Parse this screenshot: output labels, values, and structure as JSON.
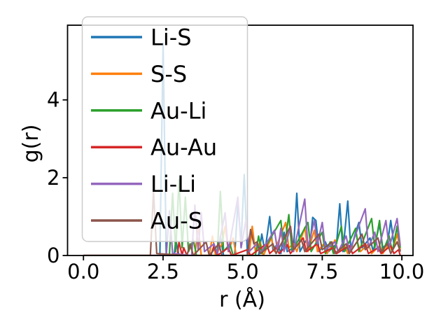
{
  "figure": {
    "background": "#ffffff",
    "spine_color": "#000000",
    "legend_face_color": "#ffffff",
    "legend_edge_color": "#cccccc"
  },
  "chart_data": {
    "type": "line",
    "title": "",
    "xlabel": "r (Å)",
    "ylabel": "g(r)",
    "xlim": [
      -0.5,
      10.35
    ],
    "ylim": [
      0,
      5.92
    ],
    "xticks": [
      0.0,
      2.5,
      5.0,
      7.5,
      10.0
    ],
    "xtick_labels": [
      "0.0",
      "2.5",
      "5.0",
      "7.5",
      "10.0"
    ],
    "yticks": [
      0,
      2,
      4
    ],
    "ytick_labels": [
      "0",
      "2",
      "4"
    ],
    "grid": false,
    "legend_position": "upper left",
    "series": [
      {
        "name": "Li-S",
        "color": "#1f77b4",
        "points": [
          [
            0.0,
            0
          ],
          [
            2.4,
            0
          ],
          [
            2.5,
            5.45
          ],
          [
            2.6,
            0
          ],
          [
            2.85,
            0
          ],
          [
            2.9,
            0.4
          ],
          [
            3.0,
            0
          ],
          [
            4.2,
            0
          ],
          [
            4.3,
            0.5
          ],
          [
            4.4,
            0
          ],
          [
            4.75,
            0
          ],
          [
            4.85,
            1.35
          ],
          [
            4.95,
            0.3
          ],
          [
            5.05,
            2.08
          ],
          [
            5.15,
            0
          ],
          [
            5.5,
            0
          ],
          [
            5.6,
            0.55
          ],
          [
            5.7,
            0.1
          ],
          [
            5.85,
            1.0
          ],
          [
            5.95,
            0.15
          ],
          [
            6.1,
            0.3
          ],
          [
            6.2,
            0.05
          ],
          [
            6.3,
            0.6
          ],
          [
            6.4,
            0.1
          ],
          [
            6.6,
            0.2
          ],
          [
            6.7,
            1.6
          ],
          [
            6.8,
            0.1
          ],
          [
            7.0,
            0.4
          ],
          [
            7.1,
            0.15
          ],
          [
            7.2,
            0.98
          ],
          [
            7.3,
            0.9
          ],
          [
            7.4,
            0.1
          ],
          [
            7.6,
            0.35
          ],
          [
            7.7,
            0.1
          ],
          [
            7.95,
            0.3
          ],
          [
            8.05,
            1.33
          ],
          [
            8.15,
            0.1
          ],
          [
            8.3,
            1.4
          ],
          [
            8.4,
            0.15
          ],
          [
            8.55,
            0.6
          ],
          [
            8.65,
            0.85
          ],
          [
            8.75,
            0.2
          ],
          [
            9.0,
            0.45
          ],
          [
            9.1,
            0.1
          ],
          [
            9.3,
            0.8
          ],
          [
            9.4,
            0.2
          ],
          [
            9.55,
            0.3
          ],
          [
            9.65,
            0.9
          ],
          [
            9.75,
            0.3
          ],
          [
            9.85,
            0.75
          ],
          [
            9.95,
            0.1
          ]
        ]
      },
      {
        "name": "S-S",
        "color": "#ff7f0e",
        "points": [
          [
            0.0,
            0
          ],
          [
            3.5,
            0
          ],
          [
            3.6,
            0.75
          ],
          [
            3.7,
            0
          ],
          [
            3.95,
            0
          ],
          [
            4.05,
            0.5
          ],
          [
            4.15,
            0
          ],
          [
            4.35,
            0.3
          ],
          [
            4.45,
            0.75
          ],
          [
            4.55,
            0.1
          ],
          [
            4.7,
            0.45
          ],
          [
            4.8,
            0
          ],
          [
            5.2,
            0
          ],
          [
            5.3,
            0.75
          ],
          [
            5.4,
            0.1
          ],
          [
            5.55,
            0.35
          ],
          [
            5.65,
            0
          ],
          [
            5.9,
            0.45
          ],
          [
            6.0,
            0.1
          ],
          [
            6.35,
            0.85
          ],
          [
            6.45,
            0.2
          ],
          [
            6.6,
            0.3
          ],
          [
            6.7,
            0.1
          ],
          [
            6.95,
            0.72
          ],
          [
            7.05,
            0.1
          ],
          [
            7.25,
            0.65
          ],
          [
            7.35,
            0.1
          ],
          [
            7.55,
            0.3
          ],
          [
            7.65,
            0.05
          ],
          [
            7.9,
            0.4
          ],
          [
            8.0,
            0.1
          ],
          [
            8.2,
            0.25
          ],
          [
            8.3,
            0.05
          ],
          [
            8.6,
            0.35
          ],
          [
            8.7,
            0.1
          ],
          [
            8.95,
            0.3
          ],
          [
            9.05,
            0.05
          ],
          [
            9.3,
            0.25
          ],
          [
            9.4,
            0.05
          ],
          [
            9.6,
            0.3
          ],
          [
            9.7,
            0.1
          ],
          [
            9.85,
            0.55
          ],
          [
            9.95,
            0.15
          ]
        ]
      },
      {
        "name": "Au-Li",
        "color": "#2ca02c",
        "points": [
          [
            0.0,
            0
          ],
          [
            2.7,
            0
          ],
          [
            2.8,
            1.6
          ],
          [
            2.9,
            0.1
          ],
          [
            3.0,
            1.95
          ],
          [
            3.1,
            0.2
          ],
          [
            3.2,
            1.5
          ],
          [
            3.3,
            0.1
          ],
          [
            3.45,
            0.4
          ],
          [
            3.55,
            0
          ],
          [
            4.2,
            0
          ],
          [
            4.3,
            1.65
          ],
          [
            4.4,
            0.1
          ],
          [
            4.6,
            0.3
          ],
          [
            4.7,
            0
          ],
          [
            5.4,
            0
          ],
          [
            5.5,
            0.5
          ],
          [
            5.6,
            0.05
          ],
          [
            6.2,
            0.9
          ],
          [
            6.3,
            0.15
          ],
          [
            6.45,
            1.05
          ],
          [
            6.55,
            0.1
          ],
          [
            7.05,
            0.85
          ],
          [
            7.15,
            0.1
          ],
          [
            7.5,
            0.6
          ],
          [
            7.6,
            0.05
          ],
          [
            7.75,
            0.35
          ],
          [
            7.85,
            0.05
          ],
          [
            8.1,
            0.75
          ],
          [
            8.2,
            0.1
          ],
          [
            8.55,
            0.7
          ],
          [
            8.65,
            0.1
          ],
          [
            9.05,
            0.95
          ],
          [
            9.15,
            0.2
          ],
          [
            9.3,
            0.9
          ],
          [
            9.4,
            0.1
          ],
          [
            9.6,
            0.5
          ],
          [
            9.7,
            0.1
          ],
          [
            9.85,
            0.75
          ],
          [
            9.95,
            0.2
          ]
        ]
      },
      {
        "name": "Au-Au",
        "color": "#d62728",
        "points": [
          [
            0.0,
            0
          ],
          [
            2.95,
            0
          ],
          [
            3.0,
            0.35
          ],
          [
            3.1,
            0
          ],
          [
            3.15,
            0.2
          ],
          [
            3.25,
            0
          ],
          [
            4.0,
            0
          ],
          [
            4.1,
            0.25
          ],
          [
            4.2,
            0
          ],
          [
            4.55,
            0.2
          ],
          [
            4.65,
            0
          ],
          [
            5.15,
            0.15
          ],
          [
            5.25,
            0
          ],
          [
            5.75,
            0.3
          ],
          [
            5.85,
            0.05
          ],
          [
            6.05,
            0.2
          ],
          [
            6.15,
            0.05
          ],
          [
            6.4,
            0.28
          ],
          [
            6.5,
            0.05
          ],
          [
            6.9,
            0.45
          ],
          [
            7.0,
            0.1
          ],
          [
            7.35,
            0.3
          ],
          [
            7.45,
            0.05
          ],
          [
            7.85,
            0.2
          ],
          [
            7.95,
            0.05
          ],
          [
            8.35,
            0.25
          ],
          [
            8.45,
            0.05
          ],
          [
            8.85,
            0.3
          ],
          [
            8.95,
            0.05
          ],
          [
            9.25,
            0.2
          ],
          [
            9.35,
            0.05
          ],
          [
            9.65,
            0.25
          ],
          [
            9.75,
            0.05
          ],
          [
            9.9,
            0.15
          ],
          [
            9.95,
            0
          ]
        ]
      },
      {
        "name": "Li-Li",
        "color": "#9467bd",
        "points": [
          [
            0.0,
            0
          ],
          [
            2.6,
            0
          ],
          [
            2.7,
            1.15
          ],
          [
            2.8,
            0.05
          ],
          [
            3.4,
            0
          ],
          [
            3.5,
            1.3
          ],
          [
            3.6,
            0.15
          ],
          [
            3.7,
            1.1
          ],
          [
            3.8,
            0.1
          ],
          [
            4.1,
            0.3
          ],
          [
            4.2,
            0.05
          ],
          [
            4.45,
            1.1
          ],
          [
            4.55,
            0.1
          ],
          [
            4.85,
            1.5
          ],
          [
            4.95,
            0.2
          ],
          [
            5.1,
            0.9
          ],
          [
            5.2,
            0.1
          ],
          [
            5.45,
            0.3
          ],
          [
            5.55,
            0.05
          ],
          [
            6.0,
            0.65
          ],
          [
            6.1,
            0.1
          ],
          [
            6.2,
            0.7
          ],
          [
            6.3,
            0.1
          ],
          [
            6.5,
            0.75
          ],
          [
            6.6,
            0.1
          ],
          [
            6.95,
            1.45
          ],
          [
            7.05,
            0.2
          ],
          [
            7.25,
            0.9
          ],
          [
            7.35,
            0.3
          ],
          [
            7.5,
            0.85
          ],
          [
            7.6,
            0.15
          ],
          [
            7.9,
            0.35
          ],
          [
            8.0,
            0.1
          ],
          [
            8.25,
            0.5
          ],
          [
            8.35,
            0.1
          ],
          [
            8.85,
            1.2
          ],
          [
            8.95,
            0.2
          ],
          [
            9.15,
            0.6
          ],
          [
            9.25,
            0.1
          ],
          [
            9.5,
            0.9
          ],
          [
            9.6,
            0.2
          ],
          [
            9.85,
            0.95
          ],
          [
            9.95,
            0.25
          ]
        ]
      },
      {
        "name": "Au-S",
        "color": "#8c564b",
        "points": [
          [
            0.0,
            0
          ],
          [
            2.1,
            0
          ],
          [
            2.2,
            1.65
          ],
          [
            2.3,
            0.05
          ],
          [
            3.25,
            0
          ],
          [
            3.35,
            0.3
          ],
          [
            3.45,
            0
          ],
          [
            3.85,
            0.35
          ],
          [
            3.95,
            0
          ],
          [
            4.25,
            0.3
          ],
          [
            4.35,
            0
          ],
          [
            5.15,
            0
          ],
          [
            5.25,
            0.67
          ],
          [
            5.35,
            0.3
          ],
          [
            5.45,
            0.35
          ],
          [
            5.55,
            0.05
          ],
          [
            5.95,
            0.3
          ],
          [
            6.05,
            0.05
          ],
          [
            6.5,
            0.75
          ],
          [
            6.6,
            0.15
          ],
          [
            6.85,
            0.4
          ],
          [
            6.95,
            0.1
          ],
          [
            7.4,
            0.55
          ],
          [
            7.5,
            0.15
          ],
          [
            7.8,
            0.35
          ],
          [
            7.9,
            0.05
          ],
          [
            8.25,
            0.3
          ],
          [
            8.35,
            0.05
          ],
          [
            8.75,
            0.55
          ],
          [
            8.85,
            0.15
          ],
          [
            9.25,
            0.45
          ],
          [
            9.35,
            0.1
          ],
          [
            9.55,
            0.3
          ],
          [
            9.65,
            0.05
          ],
          [
            9.85,
            0.35
          ],
          [
            9.95,
            0.1
          ]
        ]
      }
    ]
  }
}
